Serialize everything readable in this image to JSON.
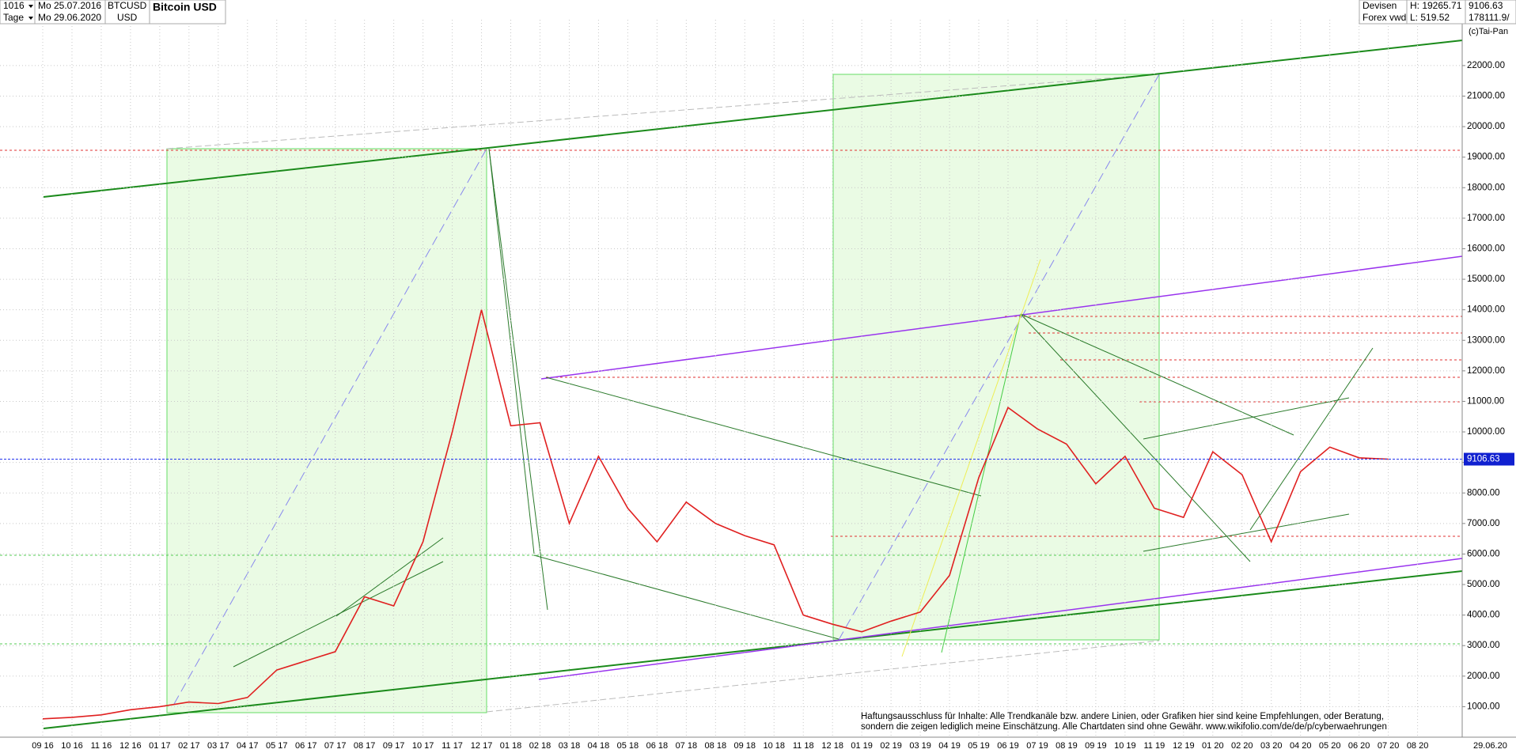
{
  "chart_data": {
    "type": "line",
    "title": "Bitcoin USD",
    "info": {
      "period": "1016",
      "start_date": "Mo 25.07.2016",
      "symbol": "BTCUSD",
      "interval": "Tage",
      "end_date": "Mo 29.06.2020",
      "currency": "USD",
      "market": "Devisen",
      "source": "Forex vwd",
      "high": "H: 19265.71",
      "low": "L: 519.52",
      "volume": "178111.9/",
      "copyright": "(c)Tai-Pan",
      "end_label": "29.06.20"
    },
    "last_price": {
      "value": 9106.63,
      "label": "9106.63"
    },
    "annotations": [
      "Haftungsausschluss für Inhalte: Alle Trendkanäle bzw. andere Linien, oder Grafiken hier sind keine Empfehlungen, oder Beratung,",
      "sondern die zeigen lediglich meine  Einschätzung. Alle Chartdaten sind ohne Gewähr.  www.wikifolio.com/de/de/p/cyberwaehrungen"
    ],
    "categories": [
      "09 16",
      "10 16",
      "11 16",
      "12 16",
      "01 17",
      "02 17",
      "03 17",
      "04 17",
      "05 17",
      "06 17",
      "07 17",
      "08 17",
      "09 17",
      "10 17",
      "11 17",
      "12 17",
      "01 18",
      "02 18",
      "03 18",
      "04 18",
      "05 18",
      "06 18",
      "07 18",
      "08 18",
      "09 18",
      "10 18",
      "11 18",
      "12 18",
      "01 19",
      "02 19",
      "03 19",
      "04 19",
      "05 19",
      "06 19",
      "07 19",
      "08 19",
      "09 19",
      "10 19",
      "11 19",
      "12 19",
      "01 20",
      "02 20",
      "03 20",
      "04 20",
      "05 20",
      "06 20",
      "07 20",
      "08 20"
    ],
    "values": [
      600,
      650,
      730,
      900,
      1000,
      1150,
      1100,
      1300,
      2200,
      2500,
      2800,
      4600,
      4300,
      6400,
      10000,
      14000,
      10200,
      10300,
      7000,
      9200,
      7500,
      6400,
      7700,
      7000,
      6600,
      6300,
      4000,
      3700,
      3450,
      3800,
      4100,
      5300,
      8500,
      10800,
      10100,
      9600,
      8300,
      9200,
      7500,
      7200,
      9350,
      8600,
      6400,
      8700,
      9500,
      9150,
      9106.63,
      null
    ],
    "color": "#e02020",
    "ylim": [
      0,
      23500
    ],
    "yticks": [
      {
        "value": 1000,
        "label": "1000.00"
      },
      {
        "value": 2000,
        "label": "2000.00"
      },
      {
        "value": 3000,
        "label": "3000.00"
      },
      {
        "value": 4000,
        "label": "4000.00"
      },
      {
        "value": 5000,
        "label": "5000.00"
      },
      {
        "value": 6000,
        "label": "6000.00"
      },
      {
        "value": 7000,
        "label": "7000.00"
      },
      {
        "value": 8000,
        "label": "8000.00"
      },
      {
        "value": 9000,
        "label": "9000.00"
      },
      {
        "value": 10000,
        "label": "10000.00"
      },
      {
        "value": 11000,
        "label": "11000.00"
      },
      {
        "value": 12000,
        "label": "12000.00"
      },
      {
        "value": 13000,
        "label": "13000.00"
      },
      {
        "value": 14000,
        "label": "14000.00"
      },
      {
        "value": 15000,
        "label": "15000.00"
      },
      {
        "value": 16000,
        "label": "16000.00"
      },
      {
        "value": 17000,
        "label": "17000.00"
      },
      {
        "value": 18000,
        "label": "18000.00"
      },
      {
        "value": 19000,
        "label": "19000.00"
      },
      {
        "value": 20000,
        "label": "20000.00"
      },
      {
        "value": 21000,
        "label": "21000.00"
      },
      {
        "value": 22000,
        "label": "22000.00"
      }
    ],
    "grid": true
  }
}
